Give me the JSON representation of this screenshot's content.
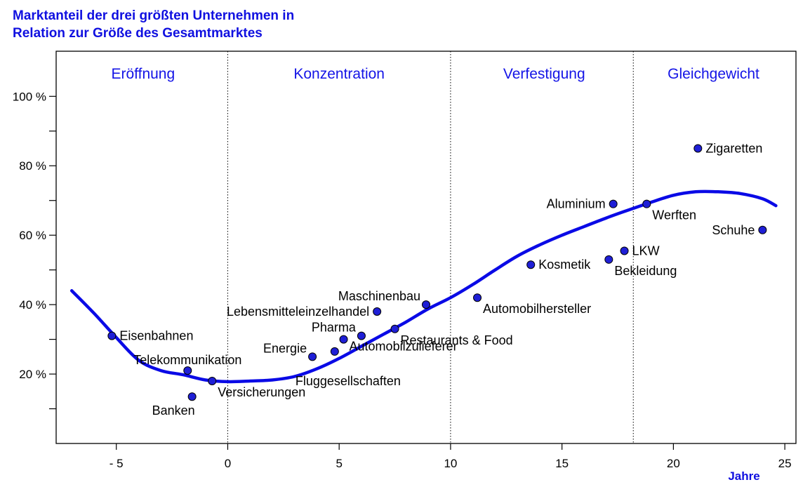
{
  "chart_data": {
    "type": "scatter",
    "title_lines": [
      "Marktanteil der drei größten Unternehmen in",
      "Relation zur Größe des Gesamtmarktes"
    ],
    "xlabel": "Jahre",
    "ylabel": "",
    "xlim": [
      -7.7,
      25.5
    ],
    "ylim": [
      0,
      113
    ],
    "x_ticks": [
      {
        "value": -5,
        "label": "- 5"
      },
      {
        "value": 0,
        "label": "0"
      },
      {
        "value": 5,
        "label": "5"
      },
      {
        "value": 10,
        "label": "10"
      },
      {
        "value": 15,
        "label": "15"
      },
      {
        "value": 20,
        "label": "20"
      },
      {
        "value": 25,
        "label": "25"
      }
    ],
    "y_ticks_major": [
      {
        "value": 20,
        "label": "20 %"
      },
      {
        "value": 40,
        "label": "40 %"
      },
      {
        "value": 60,
        "label": "60 %"
      },
      {
        "value": 80,
        "label": "80 %"
      },
      {
        "value": 100,
        "label": "100 %"
      }
    ],
    "y_ticks_minor": [
      10,
      30,
      50,
      70,
      90
    ],
    "phase_dividers": [
      0,
      10,
      18.2
    ],
    "phases": [
      {
        "label": "Eröffnung",
        "x": -3.8
      },
      {
        "label": "Konzentration",
        "x": 5
      },
      {
        "label": "Verfestigung",
        "x": 14.2
      },
      {
        "label": "Gleichgewicht",
        "x": 21.8
      }
    ],
    "curve": [
      [
        -7,
        44
      ],
      [
        -6,
        37.5
      ],
      [
        -5,
        30.5
      ],
      [
        -4,
        24
      ],
      [
        -3,
        21
      ],
      [
        -2,
        19.8
      ],
      [
        -1,
        18.3
      ],
      [
        0,
        17.8
      ],
      [
        1,
        18
      ],
      [
        2,
        18.3
      ],
      [
        3,
        19.3
      ],
      [
        4,
        21.5
      ],
      [
        5,
        24.5
      ],
      [
        6,
        28
      ],
      [
        7,
        31.5
      ],
      [
        8,
        35
      ],
      [
        9,
        38.8
      ],
      [
        10,
        42
      ],
      [
        11,
        45.8
      ],
      [
        12,
        50
      ],
      [
        13,
        54
      ],
      [
        14,
        57.2
      ],
      [
        15,
        60
      ],
      [
        16,
        62.5
      ],
      [
        17,
        65
      ],
      [
        18,
        67.3
      ],
      [
        19,
        69.5
      ],
      [
        20,
        71.5
      ],
      [
        21,
        72.5
      ],
      [
        22,
        72.5
      ],
      [
        23,
        72
      ],
      [
        24,
        70.5
      ],
      [
        24.6,
        68.5
      ]
    ],
    "points": [
      {
        "label": "Eisenbahnen",
        "x": -5.2,
        "y": 31,
        "anchor": "right"
      },
      {
        "label": "Telekommunikation",
        "x": -1.8,
        "y": 21,
        "anchor": "above"
      },
      {
        "label": "Banken",
        "x": -1.6,
        "y": 13.5,
        "anchor": "below-left"
      },
      {
        "label": "Versicherungen",
        "x": -0.7,
        "y": 18,
        "anchor": "below-right"
      },
      {
        "label": "Energie",
        "x": 3.8,
        "y": 25,
        "anchor": "above-left"
      },
      {
        "label": "Fluggesellschaften",
        "x": 4.8,
        "y": 26.5,
        "anchor": "far-below-left"
      },
      {
        "label": "Automobilzulieferer",
        "x": 5.2,
        "y": 30,
        "anchor": "lower-right"
      },
      {
        "label": "Pharma",
        "x": 6,
        "y": 31,
        "anchor": "above-left"
      },
      {
        "label": "Lebensmitteleinzelhandel",
        "x": 6.7,
        "y": 38,
        "anchor": "left"
      },
      {
        "label": "Restaurants & Food",
        "x": 7.5,
        "y": 33,
        "anchor": "below-right"
      },
      {
        "label": "Maschinenbau",
        "x": 8.9,
        "y": 40,
        "anchor": "above-left"
      },
      {
        "label": "Automobilhersteller",
        "x": 11.2,
        "y": 42,
        "anchor": "below-right"
      },
      {
        "label": "Kosmetik",
        "x": 13.6,
        "y": 51.5,
        "anchor": "right"
      },
      {
        "label": "Bekleidung",
        "x": 17.1,
        "y": 53,
        "anchor": "below-right"
      },
      {
        "label": "LKW",
        "x": 17.8,
        "y": 55.5,
        "anchor": "right"
      },
      {
        "label": "Aluminium",
        "x": 17.3,
        "y": 69,
        "anchor": "left"
      },
      {
        "label": "Werften",
        "x": 18.8,
        "y": 69,
        "anchor": "below-right"
      },
      {
        "label": "Zigaretten",
        "x": 21.1,
        "y": 85,
        "anchor": "right"
      },
      {
        "label": "Schuhe",
        "x": 24,
        "y": 61.5,
        "anchor": "left"
      }
    ],
    "colors": {
      "curve": "#0a0ae6",
      "point": "#1f1fd6",
      "point_edge": "#000000",
      "phase_text": "#1414e6",
      "title": "#1010e0",
      "axis": "#000000"
    },
    "grid": false,
    "legend": "none"
  }
}
